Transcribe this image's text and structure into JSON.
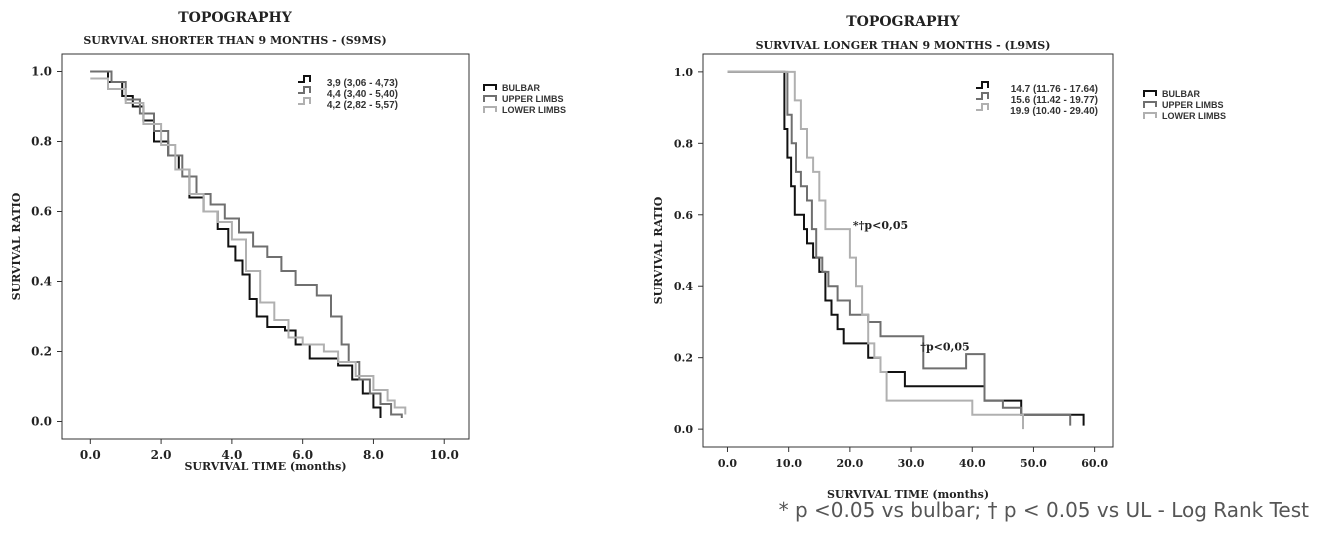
{
  "chart_data": [
    {
      "type": "line",
      "step": true,
      "title": "TOPOGRAPHY",
      "subtitle": "SURVIVAL  SHORTER  THAN  9 MONTHS  - (S9MS)",
      "xlabel": "SURVIVAL  TIME  (months)",
      "ylabel": "SURVIVAL  RATIO",
      "xlim": [
        -0.8,
        10.7
      ],
      "ylim": [
        -0.05,
        1.05
      ],
      "xticks": [
        "0.0",
        "2.0",
        "4.0",
        "6.0",
        "8.0",
        "10.0"
      ],
      "yticks": [
        "0.0",
        "0.2",
        "0.4",
        "0.6",
        "0.8",
        "1.0"
      ],
      "legend_position": "top-right",
      "stats": [
        "3,9 (3,06 - 4,73)",
        "4,4 (3,40 - 5,40)",
        "4,2 (2,82 - 5,57)"
      ],
      "series": [
        {
          "name": "BULBAR",
          "color": "#111111",
          "points": [
            [
              0.0,
              1.0
            ],
            [
              0.5,
              0.97
            ],
            [
              0.9,
              0.93
            ],
            [
              1.2,
              0.9
            ],
            [
              1.5,
              0.86
            ],
            [
              1.8,
              0.8
            ],
            [
              2.2,
              0.76
            ],
            [
              2.5,
              0.72
            ],
            [
              2.8,
              0.64
            ],
            [
              3.2,
              0.6
            ],
            [
              3.6,
              0.55
            ],
            [
              3.9,
              0.5
            ],
            [
              4.1,
              0.46
            ],
            [
              4.3,
              0.42
            ],
            [
              4.5,
              0.35
            ],
            [
              4.7,
              0.3
            ],
            [
              5.0,
              0.27
            ],
            [
              5.5,
              0.26
            ],
            [
              5.8,
              0.22
            ],
            [
              6.2,
              0.18
            ],
            [
              7.0,
              0.16
            ],
            [
              7.4,
              0.12
            ],
            [
              7.7,
              0.08
            ],
            [
              8.0,
              0.04
            ],
            [
              8.2,
              0.01
            ]
          ]
        },
        {
          "name": "UPPER LIMBS",
          "color": "#6f6f6f",
          "points": [
            [
              0.0,
              1.0
            ],
            [
              0.6,
              0.97
            ],
            [
              1.0,
              0.92
            ],
            [
              1.4,
              0.88
            ],
            [
              1.8,
              0.83
            ],
            [
              2.2,
              0.76
            ],
            [
              2.6,
              0.7
            ],
            [
              3.0,
              0.65
            ],
            [
              3.4,
              0.62
            ],
            [
              3.8,
              0.58
            ],
            [
              4.2,
              0.54
            ],
            [
              4.6,
              0.5
            ],
            [
              5.0,
              0.47
            ],
            [
              5.4,
              0.43
            ],
            [
              5.8,
              0.39
            ],
            [
              6.4,
              0.36
            ],
            [
              6.8,
              0.3
            ],
            [
              7.1,
              0.22
            ],
            [
              7.3,
              0.17
            ],
            [
              7.6,
              0.12
            ],
            [
              7.9,
              0.08
            ],
            [
              8.2,
              0.05
            ],
            [
              8.5,
              0.02
            ],
            [
              8.8,
              0.01
            ]
          ]
        },
        {
          "name": "LOWER LIMBS",
          "color": "#b0b0b0",
          "points": [
            [
              0.0,
              0.98
            ],
            [
              0.5,
              0.95
            ],
            [
              1.0,
              0.91
            ],
            [
              1.5,
              0.85
            ],
            [
              2.0,
              0.79
            ],
            [
              2.4,
              0.72
            ],
            [
              2.8,
              0.65
            ],
            [
              3.2,
              0.6
            ],
            [
              3.6,
              0.57
            ],
            [
              4.0,
              0.52
            ],
            [
              4.4,
              0.43
            ],
            [
              4.8,
              0.34
            ],
            [
              5.2,
              0.29
            ],
            [
              5.6,
              0.24
            ],
            [
              6.0,
              0.22
            ],
            [
              6.6,
              0.2
            ],
            [
              7.0,
              0.17
            ],
            [
              7.5,
              0.13
            ],
            [
              8.0,
              0.09
            ],
            [
              8.4,
              0.06
            ],
            [
              8.6,
              0.04
            ],
            [
              8.9,
              0.02
            ]
          ]
        }
      ]
    },
    {
      "type": "line",
      "step": true,
      "title": "TOPOGRAPHY",
      "subtitle": "SURVIVAL  LONGER  THAN  9 MONTHS  - (L9MS)",
      "xlabel": "SURVIVAL  TIME  (months)",
      "ylabel": "SURVIVAL  RATIO",
      "xlim": [
        -4,
        63
      ],
      "ylim": [
        -0.05,
        1.05
      ],
      "xticks": [
        "0.0",
        "10.0",
        "20.0",
        "30.0",
        "40.0",
        "50.0",
        "60.0"
      ],
      "yticks": [
        "0.0",
        "0.2",
        "0.4",
        "0.6",
        "0.8",
        "1.0"
      ],
      "legend_position": "top-right",
      "stats": [
        "14.7 (11.76 - 17.64)",
        "15.6 (11.42 - 19.77)",
        "19.9 (10.40 - 29.40)"
      ],
      "annotations": [
        {
          "text": "*†p<0,05",
          "x": 20.5,
          "y": 0.56
        },
        {
          "text": "†p<0,05",
          "x": 31.5,
          "y": 0.22
        }
      ],
      "series": [
        {
          "name": "BULBAR",
          "color": "#111111",
          "points": [
            [
              0,
              1.0
            ],
            [
              9,
              1.0
            ],
            [
              9.3,
              0.84
            ],
            [
              9.8,
              0.76
            ],
            [
              10.4,
              0.68
            ],
            [
              11,
              0.6
            ],
            [
              12.5,
              0.56
            ],
            [
              13,
              0.52
            ],
            [
              14,
              0.48
            ],
            [
              15,
              0.44
            ],
            [
              16,
              0.36
            ],
            [
              17,
              0.32
            ],
            [
              18,
              0.28
            ],
            [
              19,
              0.24
            ],
            [
              23,
              0.2
            ],
            [
              25,
              0.16
            ],
            [
              29,
              0.12
            ],
            [
              35,
              0.12
            ],
            [
              42,
              0.08
            ],
            [
              48,
              0.04
            ],
            [
              58,
              0.04
            ],
            [
              58.2,
              0.01
            ]
          ]
        },
        {
          "name": "UPPER LIMBS",
          "color": "#6f6f6f",
          "points": [
            [
              0,
              1.0
            ],
            [
              9.2,
              1.0
            ],
            [
              9.8,
              0.88
            ],
            [
              10.5,
              0.8
            ],
            [
              11.2,
              0.72
            ],
            [
              12,
              0.68
            ],
            [
              13,
              0.64
            ],
            [
              13.8,
              0.56
            ],
            [
              14.5,
              0.48
            ],
            [
              15.5,
              0.44
            ],
            [
              16.5,
              0.4
            ],
            [
              18,
              0.36
            ],
            [
              20,
              0.32
            ],
            [
              23,
              0.3
            ],
            [
              25,
              0.26
            ],
            [
              30,
              0.26
            ],
            [
              32,
              0.17
            ],
            [
              37,
              0.17
            ],
            [
              39,
              0.21
            ],
            [
              41,
              0.21
            ],
            [
              42,
              0.08
            ],
            [
              45,
              0.06
            ],
            [
              48,
              0.04
            ],
            [
              55,
              0.04
            ],
            [
              56,
              0.01
            ]
          ]
        },
        {
          "name": "LOWER LIMBS",
          "color": "#b0b0b0",
          "points": [
            [
              0,
              1.0
            ],
            [
              10.5,
              1.0
            ],
            [
              11,
              0.92
            ],
            [
              12,
              0.84
            ],
            [
              13,
              0.76
            ],
            [
              14,
              0.72
            ],
            [
              15,
              0.64
            ],
            [
              16,
              0.56
            ],
            [
              19,
              0.56
            ],
            [
              20,
              0.48
            ],
            [
              21,
              0.4
            ],
            [
              22,
              0.32
            ],
            [
              23,
              0.24
            ],
            [
              24,
              0.2
            ],
            [
              25,
              0.16
            ],
            [
              26,
              0.08
            ],
            [
              35,
              0.08
            ],
            [
              40,
              0.04
            ],
            [
              48,
              0.04
            ],
            [
              48.3,
              0.0
            ]
          ]
        }
      ]
    }
  ],
  "footnote": "* p <0.05 vs bulbar; † p < 0.05 vs UL - Log Rank Test"
}
